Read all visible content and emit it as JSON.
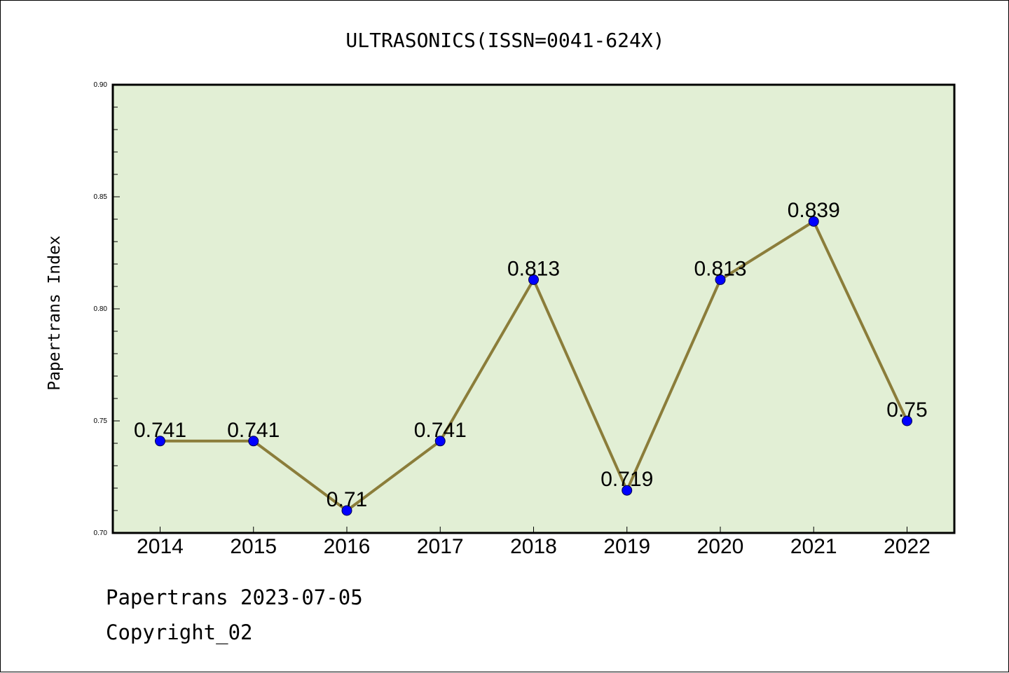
{
  "chart_data": {
    "type": "line",
    "title": "ULTRASONICS(ISSN=0041-624X)",
    "xlabel": "",
    "ylabel": "Papertrans Index",
    "categories": [
      "2014",
      "2015",
      "2016",
      "2017",
      "2018",
      "2019",
      "2020",
      "2021",
      "2022"
    ],
    "series": [
      {
        "values": [
          0.741,
          0.741,
          0.71,
          0.741,
          0.813,
          0.719,
          0.813,
          0.839,
          0.75
        ],
        "data_labels": [
          "0.741",
          "0.741",
          "0.71",
          "0.741",
          "0.813",
          "0.719",
          "0.813",
          "0.839",
          "0.75"
        ]
      }
    ],
    "ylim": [
      0.7,
      0.9
    ],
    "yticks": [
      "0.70",
      "0.75",
      "0.80",
      "0.85",
      "0.90"
    ],
    "grid": false,
    "legend": "none",
    "colors": {
      "plot_background": "#e2efd5",
      "line": "#8b7d3a",
      "marker": "#0000ff"
    }
  },
  "footer": {
    "line1": "Papertrans 2023-07-05",
    "line2": "Copyright_02"
  }
}
